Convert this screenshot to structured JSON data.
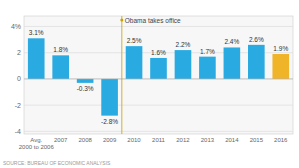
{
  "chart_data": {
    "type": "bar",
    "categories": [
      "Avg.\n2000 to 2006",
      "2007",
      "2008",
      "2009",
      "2010",
      "2011",
      "2012",
      "2013",
      "2014",
      "2015",
      "2016"
    ],
    "values": [
      3.1,
      1.8,
      -0.3,
      -2.8,
      2.5,
      1.6,
      2.2,
      1.7,
      2.4,
      2.6,
      1.9
    ],
    "value_labels": [
      "3.1%",
      "1.8%",
      "-0.3%",
      "-2.8%",
      "2.5%",
      "1.6%",
      "2.2%",
      "1.7%",
      "2.4%",
      "2.6%",
      "1.9%"
    ],
    "colors": [
      "#29ABE2",
      "#29ABE2",
      "#29ABE2",
      "#29ABE2",
      "#29ABE2",
      "#29ABE2",
      "#29ABE2",
      "#29ABE2",
      "#29ABE2",
      "#29ABE2",
      "#F0B429"
    ],
    "ylim": [
      -4.2,
      4.8
    ],
    "yticks": [
      -4,
      -2,
      0,
      2,
      {
        "value": 4,
        "label": "4%"
      }
    ],
    "grid": true,
    "data_labels": true,
    "annotations": [
      {
        "text": "Obama takes office",
        "x": 3.5,
        "color": "#C8A000"
      }
    ],
    "source": "SOURCE: BUREAU OF ECONOMIC ANALYSIS"
  }
}
